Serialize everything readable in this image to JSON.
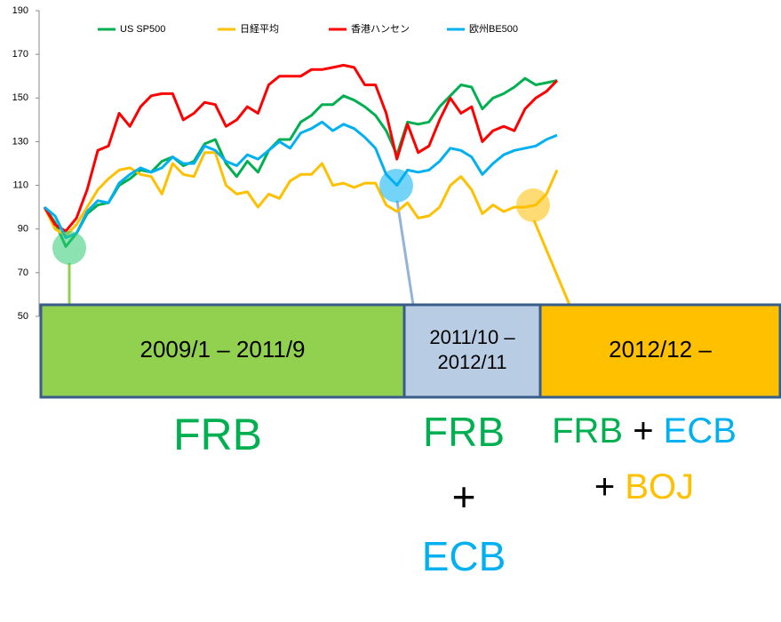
{
  "chart_data": {
    "type": "line",
    "series": [
      {
        "name": "US SP500",
        "color": "#00b050",
        "values": [
          100,
          93,
          82,
          88,
          97,
          101,
          102,
          110,
          113,
          117,
          116,
          121,
          123,
          119,
          121,
          129,
          131,
          120,
          114,
          121,
          116,
          126,
          131,
          131,
          139,
          142,
          147,
          147,
          151,
          149,
          146,
          142,
          135,
          124,
          139,
          138,
          139,
          146,
          151,
          156,
          155,
          145,
          150,
          152,
          155,
          159,
          156,
          157,
          158
        ]
      },
      {
        "name": "日経平均",
        "color": "#ffc000",
        "values": [
          100,
          90,
          87,
          92,
          100,
          108,
          113,
          117,
          118,
          115,
          114,
          106,
          120,
          115,
          114,
          125,
          125,
          110,
          106,
          107,
          100,
          106,
          104,
          112,
          115,
          115,
          120,
          110,
          111,
          109,
          111,
          111,
          101,
          98,
          102,
          95,
          96,
          100,
          110,
          114,
          108,
          97,
          101,
          98,
          100,
          100,
          101,
          106,
          117
        ]
      },
      {
        "name": "香港ハンセン",
        "color": "#ff0000",
        "values": [
          100,
          92,
          89,
          95,
          108,
          126,
          128,
          143,
          137,
          146,
          151,
          152,
          152,
          140,
          143,
          148,
          147,
          137,
          140,
          146,
          143,
          156,
          160,
          160,
          160,
          163,
          163,
          164,
          165,
          164,
          156,
          156,
          143,
          122,
          138,
          125,
          128,
          140,
          150,
          143,
          146,
          130,
          135,
          137,
          135,
          145,
          150,
          153,
          158
        ]
      },
      {
        "name": "欧州BE500",
        "color": "#00b0f0",
        "values": [
          100,
          96,
          86,
          88,
          98,
          103,
          102,
          111,
          115,
          118,
          116,
          118,
          123,
          120,
          120,
          128,
          126,
          121,
          119,
          124,
          122,
          126,
          130,
          127,
          134,
          136,
          139,
          135,
          138,
          136,
          132,
          127,
          115,
          110,
          117,
          116,
          117,
          121,
          127,
          126,
          123,
          115,
          120,
          124,
          126,
          127,
          128,
          131,
          133
        ]
      }
    ],
    "ylim": [
      50,
      190
    ],
    "yticks": [
      50,
      70,
      90,
      110,
      130,
      150,
      170,
      190
    ],
    "grid": false
  },
  "periods": [
    {
      "lines": [
        "2009/1 – 2011/9"
      ],
      "color": "#92d050"
    },
    {
      "lines": [
        "2011/10 –",
        "2012/11"
      ],
      "color": "#b8cce4"
    },
    {
      "lines": [
        "2012/12 –"
      ],
      "color": "#ffc000"
    }
  ],
  "banks": [
    {
      "rows": [
        [
          {
            "text": "FRB",
            "color": "#00b050"
          }
        ]
      ]
    },
    {
      "rows": [
        [
          {
            "text": "FRB",
            "color": "#00b050"
          }
        ],
        [
          {
            "text": "+",
            "color": "#000000"
          }
        ],
        [
          {
            "text": "ECB",
            "color": "#00b0f0"
          }
        ]
      ]
    },
    {
      "rows": [
        [
          {
            "text": "FRB",
            "color": "#00b050"
          },
          {
            "text": "+",
            "color": "#000000"
          },
          {
            "text": "ECB",
            "color": "#00b0f0"
          }
        ],
        [
          {
            "text": "+",
            "color": "#000000"
          },
          {
            "text": "BOJ",
            "color": "#ffc000"
          }
        ]
      ]
    }
  ]
}
